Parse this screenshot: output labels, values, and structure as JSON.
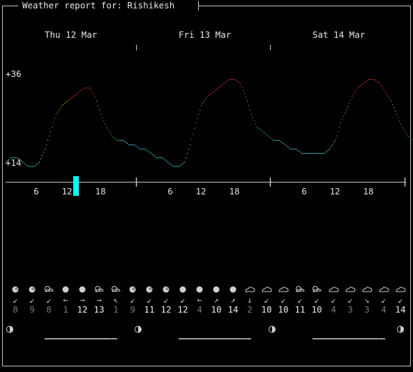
{
  "title": "Weather report for: Rishikesh",
  "days": [
    "Thu 12 Mar",
    "Fri 13 Mar",
    "Sat 14 Mar"
  ],
  "temp_axis": {
    "max_label": "+36",
    "min_label": "+14"
  },
  "hour_ticks": [
    "6",
    "12",
    "18"
  ],
  "current_hour_marker": "day-1-hour-13",
  "colors": {
    "cold": "#4fd6e8",
    "mild": "#2f9e3a",
    "warm": "#9aa52a",
    "hot": "#d03a2a",
    "marker": "#00ffff",
    "frame": "#c8c8c8",
    "icon": "#cfcfcf",
    "wind_dim": "#777777",
    "wind_bright": "#eeeeee"
  },
  "chart_data": {
    "type": "line",
    "x_unit": "hour",
    "ylim": [
      14,
      36
    ],
    "temps": [
      15,
      16,
      16,
      15,
      14,
      14,
      15,
      18,
      22,
      26,
      28,
      29,
      30,
      31,
      32,
      32,
      30,
      26,
      23,
      21,
      20,
      20,
      19,
      19,
      18,
      18,
      17,
      16,
      16,
      15,
      14,
      14,
      15,
      19,
      24,
      28,
      30,
      31,
      32,
      33,
      34,
      34,
      33,
      30,
      26,
      23,
      22,
      21,
      20,
      20,
      19,
      18,
      18,
      17,
      17,
      17,
      17,
      17,
      18,
      20,
      24,
      27,
      30,
      32,
      33,
      34,
      34,
      33,
      31,
      29,
      26,
      23,
      21,
      20
    ]
  },
  "forecast": [
    {
      "icon": "moon-icon",
      "dir": "↙",
      "speed": "8"
    },
    {
      "icon": "moon-icon",
      "dir": "↙",
      "speed": "9"
    },
    {
      "icon": "cloudy-moon-icon",
      "dir": "↙",
      "speed": "8"
    },
    {
      "icon": "sun-icon",
      "dir": "←",
      "speed": "1"
    },
    {
      "icon": "sun-icon",
      "dir": "→",
      "speed": "12"
    },
    {
      "icon": "cloudy-sun-icon",
      "dir": "→",
      "speed": "13"
    },
    {
      "icon": "cloudy-moon-icon",
      "dir": "↖",
      "speed": "1"
    },
    {
      "icon": "moon-icon",
      "dir": "↙",
      "speed": "9"
    },
    {
      "icon": "moon-icon",
      "dir": "↙",
      "speed": "11"
    },
    {
      "icon": "moon-icon",
      "dir": "↙",
      "speed": "12"
    },
    {
      "icon": "sun-icon",
      "dir": "↙",
      "speed": "12"
    },
    {
      "icon": "sun-icon",
      "dir": "←",
      "speed": "4"
    },
    {
      "icon": "sun-icon",
      "dir": "↗",
      "speed": "10"
    },
    {
      "icon": "sun-icon",
      "dir": "↗",
      "speed": "14"
    },
    {
      "icon": "partly-cloudy-icon",
      "dir": "↓",
      "speed": "2"
    },
    {
      "icon": "partly-cloudy-icon",
      "dir": "↙",
      "speed": "10"
    },
    {
      "icon": "partly-cloudy-icon",
      "dir": "↙",
      "speed": "10"
    },
    {
      "icon": "cloudy-moon-icon",
      "dir": "↙",
      "speed": "11"
    },
    {
      "icon": "cloudy-sun-icon",
      "dir": "↙",
      "speed": "10"
    },
    {
      "icon": "partly-cloudy-icon",
      "dir": "↙",
      "speed": "4"
    },
    {
      "icon": "partly-cloudy-icon",
      "dir": "↙",
      "speed": "3"
    },
    {
      "icon": "partly-cloudy-icon",
      "dir": "↘",
      "speed": "3"
    },
    {
      "icon": "partly-cloudy-icon",
      "dir": "↙",
      "speed": "4"
    },
    {
      "icon": "partly-cloudy-icon",
      "dir": "↙",
      "speed": "14"
    }
  ],
  "moon_phase_icon": "half-moon-icon",
  "daylight": [
    0.68,
    0.68,
    0.68
  ]
}
